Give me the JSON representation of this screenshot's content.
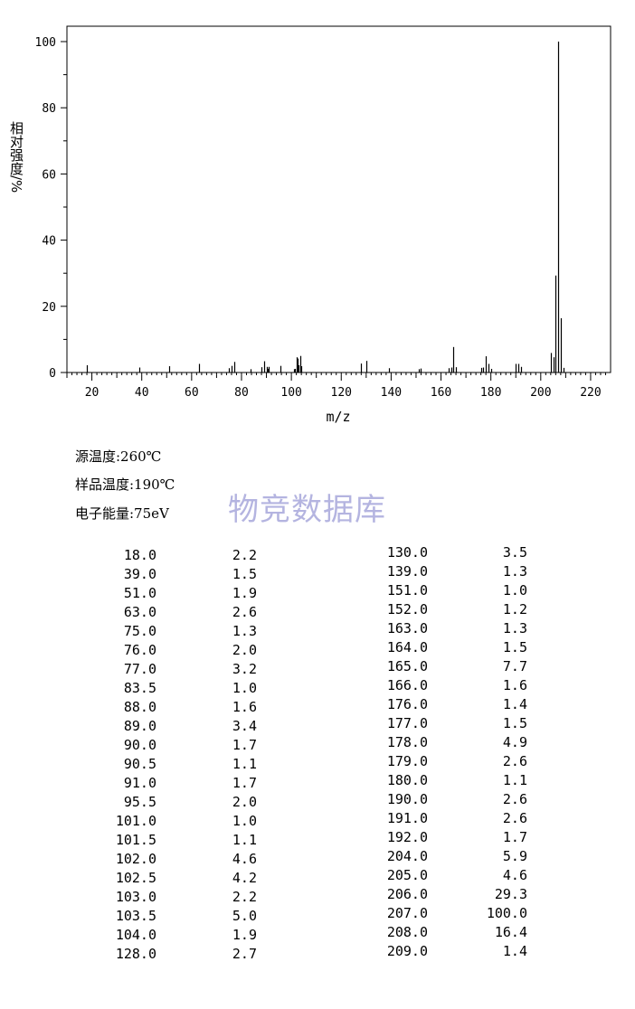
{
  "chart_data": {
    "type": "bar",
    "ylabel": "相对强度/%",
    "xlabel": "m/z",
    "xlim": [
      10,
      228
    ],
    "ylim": [
      0,
      100
    ],
    "x_ticks": [
      20,
      40,
      60,
      80,
      100,
      120,
      140,
      160,
      180,
      200,
      220
    ],
    "y_ticks": [
      0,
      20,
      40,
      60,
      80,
      100
    ],
    "grid": false,
    "x": [
      18.0,
      39.0,
      51.0,
      63.0,
      75.0,
      76.0,
      77.0,
      83.5,
      88.0,
      89.0,
      90.0,
      90.5,
      91.0,
      95.5,
      101.0,
      101.5,
      102.0,
      102.5,
      103.0,
      103.5,
      104.0,
      128.0,
      130.0,
      139.0,
      151.0,
      152.0,
      163.0,
      164.0,
      165.0,
      166.0,
      176.0,
      177.0,
      178.0,
      179.0,
      180.0,
      190.0,
      191.0,
      192.0,
      204.0,
      205.0,
      206.0,
      207.0,
      208.0,
      209.0
    ],
    "values": [
      2.2,
      1.5,
      1.9,
      2.6,
      1.3,
      2.0,
      3.2,
      1.0,
      1.6,
      3.4,
      1.7,
      1.1,
      1.7,
      2.0,
      1.0,
      1.1,
      4.6,
      4.2,
      2.2,
      5.0,
      1.9,
      2.7,
      3.5,
      1.3,
      1.0,
      1.2,
      1.3,
      1.5,
      7.7,
      1.6,
      1.4,
      1.5,
      4.9,
      2.6,
      1.1,
      2.6,
      2.6,
      1.7,
      5.9,
      4.6,
      29.3,
      100.0,
      16.4,
      1.4
    ]
  },
  "conditions": {
    "source_temp": "源温度:260℃",
    "sample_temp": "样品温度:190℃",
    "electron_energy": "电子能量:75eV"
  },
  "watermark": "物竞数据库",
  "table_left": [
    [
      "18.0",
      "2.2"
    ],
    [
      "39.0",
      "1.5"
    ],
    [
      "51.0",
      "1.9"
    ],
    [
      "63.0",
      "2.6"
    ],
    [
      "75.0",
      "1.3"
    ],
    [
      "76.0",
      "2.0"
    ],
    [
      "77.0",
      "3.2"
    ],
    [
      "83.5",
      "1.0"
    ],
    [
      "88.0",
      "1.6"
    ],
    [
      "89.0",
      "3.4"
    ],
    [
      "90.0",
      "1.7"
    ],
    [
      "90.5",
      "1.1"
    ],
    [
      "91.0",
      "1.7"
    ],
    [
      "95.5",
      "2.0"
    ],
    [
      "101.0",
      "1.0"
    ],
    [
      "101.5",
      "1.1"
    ],
    [
      "102.0",
      "4.6"
    ],
    [
      "102.5",
      "4.2"
    ],
    [
      "103.0",
      "2.2"
    ],
    [
      "103.5",
      "5.0"
    ],
    [
      "104.0",
      "1.9"
    ],
    [
      "128.0",
      "2.7"
    ]
  ],
  "table_right": [
    [
      "130.0",
      "3.5"
    ],
    [
      "139.0",
      "1.3"
    ],
    [
      "151.0",
      "1.0"
    ],
    [
      "152.0",
      "1.2"
    ],
    [
      "163.0",
      "1.3"
    ],
    [
      "164.0",
      "1.5"
    ],
    [
      "165.0",
      "7.7"
    ],
    [
      "166.0",
      "1.6"
    ],
    [
      "176.0",
      "1.4"
    ],
    [
      "177.0",
      "1.5"
    ],
    [
      "178.0",
      "4.9"
    ],
    [
      "179.0",
      "2.6"
    ],
    [
      "180.0",
      "1.1"
    ],
    [
      "190.0",
      "2.6"
    ],
    [
      "191.0",
      "2.6"
    ],
    [
      "192.0",
      "1.7"
    ],
    [
      "204.0",
      "5.9"
    ],
    [
      "205.0",
      "4.6"
    ],
    [
      "206.0",
      "29.3"
    ],
    [
      "207.0",
      "100.0"
    ],
    [
      "208.0",
      "16.4"
    ],
    [
      "209.0",
      "1.4"
    ]
  ]
}
